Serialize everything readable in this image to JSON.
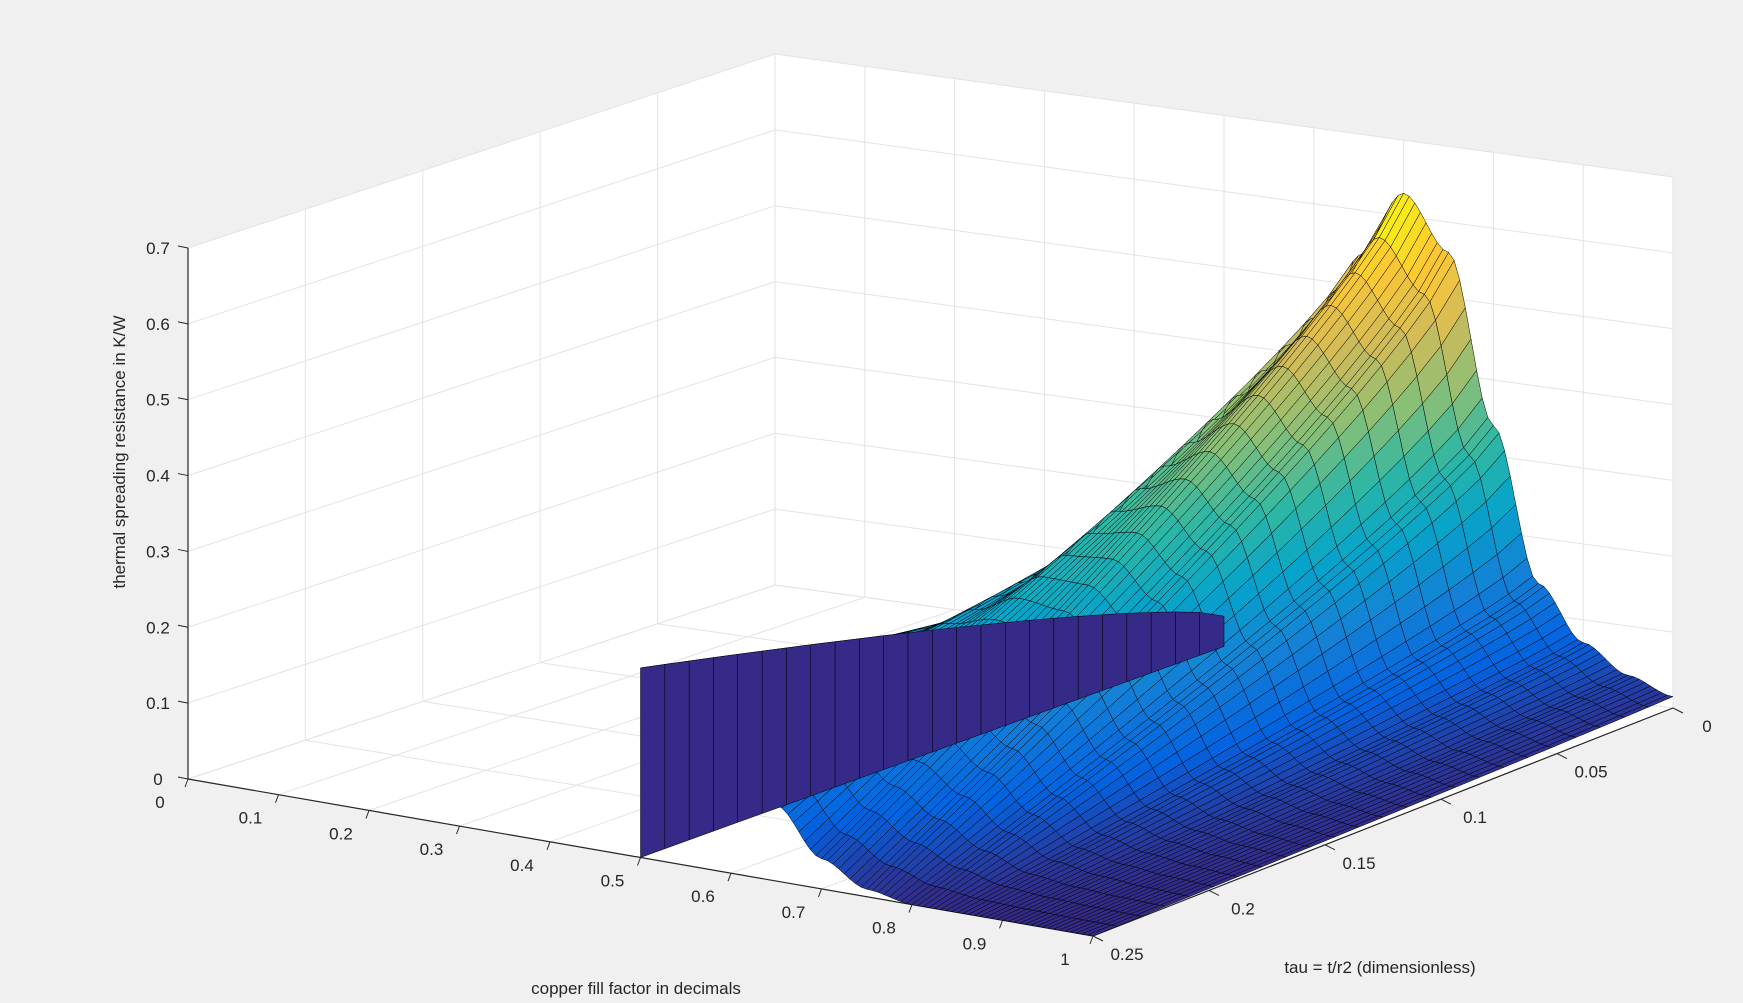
{
  "chart_data": {
    "type": "surface",
    "title": "",
    "xlabel": "copper fill factor in decimals",
    "ylabel": "tau = t/r2 (dimensionless)",
    "zlabel": "thermal spreading resistance in K/W",
    "xlim": [
      0,
      1
    ],
    "ylim": [
      0,
      0.25
    ],
    "zlim": [
      0,
      0.7
    ],
    "x_ticks": [
      "0",
      "0.1",
      "0.2",
      "0.3",
      "0.4",
      "0.5",
      "0.6",
      "0.7",
      "0.8",
      "0.9",
      "1"
    ],
    "y_ticks": [
      "0",
      "0.05",
      "0.1",
      "0.15",
      "0.2",
      "0.25"
    ],
    "z_ticks": [
      "0",
      "0.1",
      "0.2",
      "0.3",
      "0.4",
      "0.5",
      "0.6",
      "0.7"
    ],
    "grid": true,
    "colormap": "parula",
    "surface_domain": {
      "x": [
        0.5,
        1.0
      ],
      "y": [
        0.0,
        0.25
      ]
    },
    "tau_samples": [
      0.0,
      0.02,
      0.05,
      0.08,
      0.1,
      0.13,
      0.15,
      0.18,
      0.2,
      0.22,
      0.25
    ],
    "resistance_along_x_at_tau_0": {
      "x": [
        0.5,
        0.55,
        0.6,
        0.65,
        0.7,
        0.75,
        0.8,
        0.85,
        0.9,
        0.95,
        1.0
      ],
      "z": [
        0.04,
        0.15,
        0.34,
        0.54,
        0.63,
        0.56,
        0.34,
        0.14,
        0.07,
        0.035,
        0.015
      ]
    },
    "resistance_along_x_at_tau_0_25": {
      "x": [
        0.5,
        0.55,
        0.6,
        0.65,
        0.7,
        0.75,
        0.8,
        0.85,
        0.9,
        0.95,
        1.0
      ],
      "z": [
        0.25,
        0.22,
        0.17,
        0.1,
        0.04,
        0.01,
        0.0,
        0.0,
        0.0,
        0.0,
        0.0
      ]
    },
    "peak": {
      "x": 0.7,
      "y": 0.0,
      "z": 0.63
    }
  }
}
